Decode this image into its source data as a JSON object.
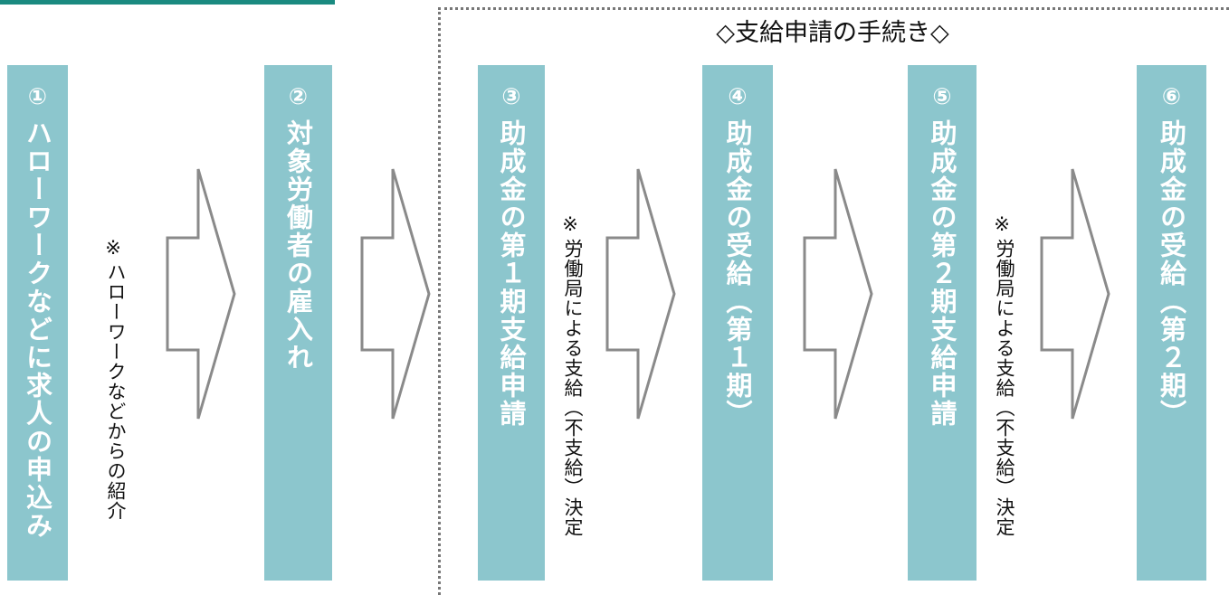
{
  "colors": {
    "box": "#8cc6cd",
    "top_bar": "#1a8a80",
    "arrow_stroke": "#8a8a8a",
    "frame": "#777777"
  },
  "frame_title": "◇支給申請の手続き◇",
  "steps": [
    {
      "num": "①",
      "label": "ハローワークなどに求人の申込み"
    },
    {
      "num": "②",
      "label": "対象労働者の雇入れ"
    },
    {
      "num": "③",
      "label": "助成金の第１期支給申請"
    },
    {
      "num": "④",
      "label": "助成金の受給（第１期）"
    },
    {
      "num": "⑤",
      "label": "助成金の第２期支給申請"
    },
    {
      "num": "⑥",
      "label": "助成金の受給（第２期）"
    }
  ],
  "notes": {
    "mark": "※",
    "referral": "ハローワークなどからの紹介",
    "decision1": "労働局による支給（不支給）決定",
    "decision2": "労働局による支給（不支給）決定"
  }
}
